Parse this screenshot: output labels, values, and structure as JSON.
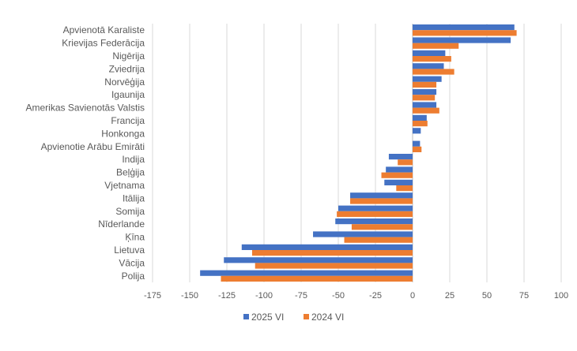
{
  "chart_data": {
    "type": "bar",
    "orientation": "horizontal",
    "categories": [
      "Apvienotā Karaliste",
      "Krievijas Federācija",
      "Nigērija",
      "Zviedrija",
      "Norvēģija",
      "Igaunija",
      "Amerikas Savienotās Valstis",
      "Francija",
      "Honkonga",
      "Apvienotie Arābu Emirāti",
      "Indija",
      "Beļģija",
      "Vjetnama",
      "Itālija",
      "Somija",
      "Nīderlande",
      "Ķīna",
      "Lietuva",
      "Vācija",
      "Polija"
    ],
    "series": [
      {
        "name": "2025 VI",
        "color": "#4472c4",
        "values": [
          68.5,
          66,
          22,
          21,
          19.5,
          16,
          16,
          9.5,
          5.5,
          5,
          -16,
          -18,
          -19,
          -42,
          -50,
          -52,
          -67,
          -115,
          -127,
          -143
        ]
      },
      {
        "name": "2024 VI",
        "color": "#ed7d31",
        "values": [
          70,
          31,
          26,
          28,
          16,
          15,
          18,
          10,
          0,
          6,
          -10,
          -21,
          -11,
          -42,
          -51,
          -41,
          -46,
          -108,
          -106,
          -129
        ]
      }
    ],
    "xlim": [
      -175,
      100
    ],
    "x_ticks": [
      "-175",
      "-150",
      "-125",
      "-100",
      "-75",
      "-50",
      "-25",
      "0",
      "25",
      "50",
      "75",
      "100"
    ],
    "xlabel": "",
    "ylabel": "",
    "grid": true,
    "legend_position": "bottom"
  }
}
